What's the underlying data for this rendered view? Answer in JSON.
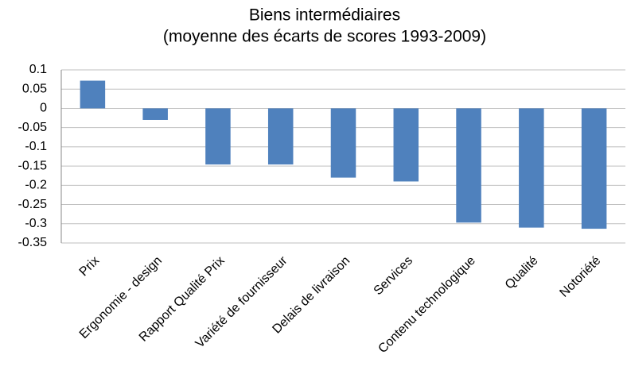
{
  "chart_data": {
    "type": "bar",
    "title": "Biens intermédiaires",
    "subtitle": "(moyenne des écarts de scores 1993-2009)",
    "categories": [
      "Prix",
      "Ergonomie - design",
      "Rapport Qualité Prix",
      "Variété de fournisseur",
      "Delais de livraison",
      "Services",
      "Contenu technologique",
      "Qualité",
      "Notoriété"
    ],
    "values": [
      0.072,
      -0.03,
      -0.146,
      -0.146,
      -0.18,
      -0.19,
      -0.297,
      -0.31,
      -0.313
    ],
    "color": "#4f81bd",
    "ylim": [
      -0.35,
      0.1
    ],
    "yticks": [
      0.1,
      0.05,
      0,
      -0.05,
      -0.1,
      -0.15,
      -0.2,
      -0.25,
      -0.3,
      -0.35
    ],
    "grid": true
  }
}
